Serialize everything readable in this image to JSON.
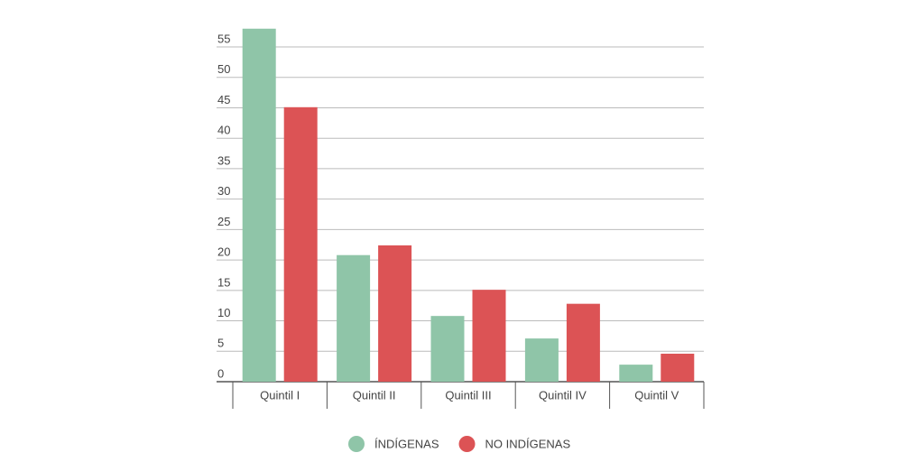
{
  "chart_data": {
    "type": "bar",
    "categories": [
      "Quintil I",
      "Quintil II",
      "Quintil III",
      "Quintil IV",
      "Quintil V"
    ],
    "series": [
      {
        "name": "ÍNDÍGENAS",
        "color": "#8fc5a8",
        "values": [
          58,
          20.8,
          10.8,
          7.1,
          2.8
        ]
      },
      {
        "name": "NO INDÍGENAS",
        "color": "#dc5355",
        "values": [
          45.1,
          22.4,
          15.1,
          12.8,
          4.6
        ]
      }
    ],
    "ylim": [
      0,
      58
    ],
    "yticks": [
      0,
      5,
      10,
      15,
      20,
      25,
      30,
      35,
      40,
      45,
      50,
      55
    ],
    "grid": true
  }
}
